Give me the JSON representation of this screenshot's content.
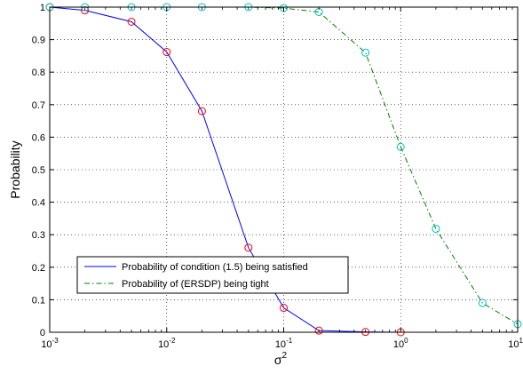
{
  "chart_data": {
    "type": "line",
    "xscale": "log",
    "xlim": [
      0.001,
      10
    ],
    "ylim": [
      0,
      1
    ],
    "xlabel": "σ",
    "xlabel_sup": "2",
    "ylabel": "Probability",
    "grid": true,
    "legend_position": "bottom-left",
    "x_ticks": [
      {
        "base": "10",
        "exp": "-3",
        "value": 0.001
      },
      {
        "base": "10",
        "exp": "-2",
        "value": 0.01
      },
      {
        "base": "10",
        "exp": "-1",
        "value": 0.1
      },
      {
        "base": "10",
        "exp": "0",
        "value": 1
      },
      {
        "base": "10",
        "exp": "1",
        "value": 10
      }
    ],
    "y_ticks": [
      {
        "label": "0",
        "value": 0
      },
      {
        "label": "0.1",
        "value": 0.1
      },
      {
        "label": "0.2",
        "value": 0.2
      },
      {
        "label": "0.3",
        "value": 0.3
      },
      {
        "label": "0.4",
        "value": 0.4
      },
      {
        "label": "0.5",
        "value": 0.5
      },
      {
        "label": "0.6",
        "value": 0.6
      },
      {
        "label": "0.7",
        "value": 0.7
      },
      {
        "label": "0.8",
        "value": 0.8
      },
      {
        "label": "0.9",
        "value": 0.9
      },
      {
        "label": "1",
        "value": 1
      }
    ],
    "series": [
      {
        "name": "Probability of condition (1.5) being satisfied",
        "line_color": "#0000ff",
        "marker_color": "#ff0000",
        "dash": "solid",
        "x": [
          0.001,
          0.002,
          0.005,
          0.01,
          0.02,
          0.05,
          0.1,
          0.2,
          0.5,
          1
        ],
        "y": [
          1.0,
          0.99,
          0.955,
          0.862,
          0.68,
          0.26,
          0.075,
          0.005,
          0.001,
          0.0
        ]
      },
      {
        "name": "Probability of (ERSDP) being tight",
        "line_color": "#008000",
        "marker_color": "#00bfbf",
        "dash": "dashdot",
        "x": [
          0.001,
          0.002,
          0.005,
          0.01,
          0.02,
          0.05,
          0.1,
          0.2,
          0.5,
          1,
          2,
          5,
          10
        ],
        "y": [
          1.0,
          1.0,
          1.0,
          1.0,
          1.0,
          1.0,
          0.997,
          0.985,
          0.86,
          0.57,
          0.318,
          0.09,
          0.025
        ]
      }
    ]
  }
}
